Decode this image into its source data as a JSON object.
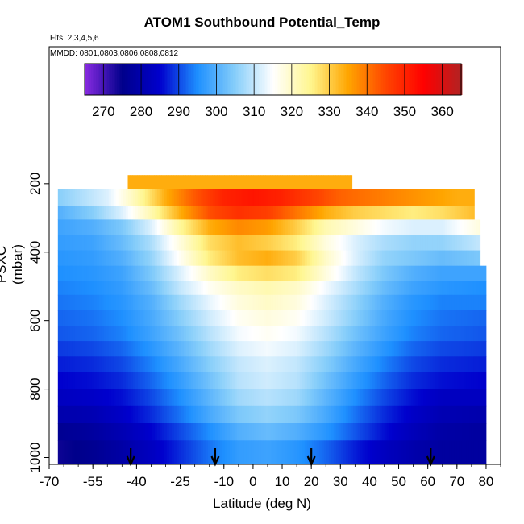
{
  "chart_data": {
    "type": "heatmap",
    "title": "ATOM1 Southbound Potential_Temp",
    "annotations": [
      "Flts: 2,3,4,5,6",
      "MMDD: 0801,0803,0806,0808,0812"
    ],
    "xlabel": "Latitude (deg N)",
    "ylabel": "PSXC (mbar)",
    "xlim": [
      -70,
      85
    ],
    "ylim": [
      1020,
      -200
    ],
    "y_reversed": true,
    "x_ticks": [
      -70,
      -55,
      -40,
      -25,
      -10,
      0,
      10,
      20,
      30,
      40,
      50,
      60,
      70,
      80
    ],
    "x_tick_labels": [
      "-70",
      "-55",
      "-40",
      "-25",
      "-10",
      "0",
      "10",
      "20",
      "30",
      "40",
      "50",
      "60",
      "70",
      "80"
    ],
    "y_ticks": [
      200,
      400,
      600,
      800,
      1000
    ],
    "y_tick_labels": [
      "200",
      "400",
      "600",
      "800",
      "1000"
    ],
    "colorbar": {
      "ticks": [
        270,
        280,
        290,
        300,
        310,
        320,
        330,
        340,
        350,
        360
      ],
      "tick_labels": [
        "270",
        "280",
        "290",
        "300",
        "310",
        "320",
        "330",
        "340",
        "350",
        "360"
      ],
      "range": [
        265,
        365
      ],
      "colors": [
        "#8a2be2",
        "#00008b",
        "#0000cd",
        "#1e90ff",
        "#87cefa",
        "#ffffff",
        "#fff68f",
        "#ffa500",
        "#ff4500",
        "#ff0000",
        "#b22222"
      ]
    },
    "profile_arrows_latitude": [
      -42,
      -13,
      20,
      61
    ],
    "layers": [
      {
        "p_top": 175,
        "p_bot": 215,
        "x": [
          -43,
          34
        ],
        "values": [
          334,
          334
        ]
      },
      {
        "p_top": 215,
        "p_bot": 265,
        "x": [
          -67,
          -50,
          -40,
          -30,
          -20,
          -10,
          0,
          10,
          20,
          30,
          40,
          50,
          60,
          70,
          76
        ],
        "values": [
          305,
          312,
          322,
          334,
          343,
          350,
          352,
          350,
          346,
          342,
          340,
          338,
          336,
          334,
          334
        ]
      },
      {
        "p_top": 265,
        "p_bot": 305,
        "x": [
          -67,
          -55,
          -45,
          -35,
          -25,
          -15,
          -5,
          5,
          15,
          25,
          35,
          45,
          55,
          65,
          76
        ],
        "values": [
          300,
          305,
          312,
          322,
          334,
          344,
          348,
          346,
          340,
          334,
          330,
          328,
          326,
          328,
          332
        ]
      },
      {
        "p_top": 305,
        "p_bot": 350,
        "x": [
          -67,
          -55,
          -45,
          -35,
          -25,
          -15,
          -5,
          5,
          15,
          25,
          35,
          45,
          55,
          65,
          78
        ],
        "values": [
          298,
          300,
          304,
          312,
          324,
          334,
          338,
          336,
          330,
          322,
          318,
          314,
          312,
          312,
          318
        ]
      },
      {
        "p_top": 350,
        "p_bot": 395,
        "x": [
          -67,
          -55,
          -45,
          -35,
          -25,
          -15,
          -5,
          5,
          15,
          25,
          35,
          45,
          55,
          65,
          78
        ],
        "values": [
          297,
          298,
          302,
          308,
          318,
          328,
          332,
          330,
          326,
          318,
          312,
          308,
          306,
          306,
          310
        ]
      },
      {
        "p_top": 395,
        "p_bot": 440,
        "x": [
          -67,
          -55,
          -45,
          -35,
          -25,
          -15,
          -5,
          5,
          15,
          25,
          35,
          45,
          55,
          65,
          78
        ],
        "values": [
          296,
          297,
          300,
          306,
          316,
          326,
          332,
          334,
          330,
          320,
          312,
          306,
          304,
          302,
          304
        ]
      },
      {
        "p_top": 440,
        "p_bot": 485,
        "x": [
          -67,
          -55,
          -45,
          -35,
          -25,
          -15,
          -5,
          5,
          15,
          25,
          35,
          45,
          55,
          65,
          80
        ],
        "values": [
          295,
          296,
          298,
          304,
          312,
          320,
          326,
          328,
          326,
          318,
          310,
          304,
          300,
          298,
          298
        ]
      },
      {
        "p_top": 485,
        "p_bot": 525,
        "x": [
          -67,
          -55,
          -45,
          -35,
          -25,
          -15,
          -5,
          5,
          15,
          25,
          35,
          45,
          55,
          65,
          80
        ],
        "values": [
          294,
          295,
          297,
          302,
          310,
          316,
          320,
          322,
          320,
          314,
          308,
          302,
          298,
          296,
          295
        ]
      },
      {
        "p_top": 525,
        "p_bot": 570,
        "x": [
          -67,
          -55,
          -45,
          -35,
          -25,
          -15,
          -5,
          5,
          15,
          25,
          35,
          45,
          55,
          65,
          80
        ],
        "values": [
          293,
          294,
          296,
          300,
          307,
          313,
          318,
          320,
          318,
          312,
          306,
          300,
          296,
          294,
          294
        ]
      },
      {
        "p_top": 570,
        "p_bot": 615,
        "x": [
          -67,
          -55,
          -45,
          -35,
          -25,
          -15,
          -5,
          5,
          15,
          25,
          35,
          45,
          55,
          65,
          80
        ],
        "values": [
          292,
          293,
          295,
          299,
          305,
          311,
          316,
          318,
          316,
          311,
          305,
          299,
          295,
          293,
          292
        ]
      },
      {
        "p_top": 615,
        "p_bot": 660,
        "x": [
          -67,
          -55,
          -45,
          -35,
          -25,
          -15,
          -5,
          5,
          15,
          25,
          35,
          45,
          55,
          65,
          80
        ],
        "values": [
          291,
          292,
          294,
          298,
          303,
          309,
          314,
          316,
          314,
          309,
          303,
          298,
          294,
          292,
          291
        ]
      },
      {
        "p_top": 660,
        "p_bot": 705,
        "x": [
          -67,
          -55,
          -45,
          -35,
          -25,
          -15,
          -5,
          5,
          15,
          25,
          35,
          45,
          55,
          65,
          80
        ],
        "values": [
          289,
          290,
          292,
          296,
          301,
          307,
          312,
          314,
          312,
          307,
          301,
          296,
          292,
          290,
          289
        ]
      },
      {
        "p_top": 705,
        "p_bot": 750,
        "x": [
          -67,
          -55,
          -45,
          -35,
          -25,
          -15,
          -5,
          5,
          15,
          25,
          35,
          45,
          55,
          65,
          80
        ],
        "values": [
          287,
          288,
          290,
          294,
          299,
          305,
          310,
          312,
          310,
          305,
          299,
          294,
          290,
          288,
          287
        ]
      },
      {
        "p_top": 750,
        "p_bot": 800,
        "x": [
          -67,
          -55,
          -45,
          -35,
          -25,
          -15,
          -5,
          5,
          15,
          25,
          35,
          45,
          55,
          65,
          80
        ],
        "values": [
          285,
          286,
          288,
          292,
          297,
          303,
          309,
          311,
          309,
          303,
          297,
          292,
          288,
          286,
          285
        ]
      },
      {
        "p_top": 800,
        "p_bot": 850,
        "x": [
          -67,
          -55,
          -45,
          -35,
          -25,
          -15,
          -5,
          5,
          15,
          25,
          35,
          45,
          55,
          65,
          80
        ],
        "values": [
          283,
          284,
          286,
          290,
          295,
          301,
          307,
          309,
          307,
          301,
          295,
          290,
          286,
          283,
          283
        ]
      },
      {
        "p_top": 850,
        "p_bot": 900,
        "x": [
          -67,
          -55,
          -45,
          -35,
          -25,
          -15,
          -5,
          5,
          15,
          25,
          35,
          45,
          55,
          65,
          80
        ],
        "values": [
          280,
          281,
          284,
          288,
          293,
          299,
          304,
          306,
          304,
          299,
          293,
          288,
          284,
          281,
          280
        ]
      },
      {
        "p_top": 900,
        "p_bot": 950,
        "x": [
          -67,
          -55,
          -45,
          -35,
          -25,
          -15,
          -5,
          5,
          15,
          25,
          35,
          45,
          55,
          65,
          80
        ],
        "values": [
          276,
          278,
          281,
          285,
          290,
          295,
          300,
          302,
          300,
          296,
          291,
          286,
          282,
          279,
          278
        ]
      },
      {
        "p_top": 950,
        "p_bot": 1020,
        "x": [
          -67,
          -55,
          -45,
          -35,
          -25,
          -15,
          -5,
          5,
          15,
          25,
          35,
          45,
          55,
          65,
          80
        ],
        "values": [
          274,
          276,
          279,
          283,
          288,
          293,
          297,
          298,
          296,
          292,
          287,
          283,
          280,
          278,
          278
        ]
      }
    ]
  }
}
